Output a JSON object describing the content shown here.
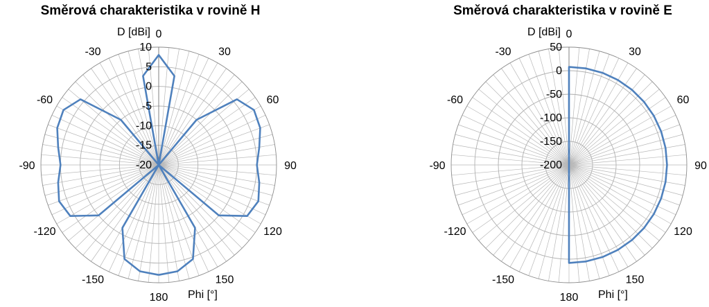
{
  "chart_data": [
    {
      "type": "polar-line",
      "title": "Směrová charakteristika v rovině H",
      "ylabel": "D [dBi]",
      "xlabel": "Phi [°]",
      "angle_labels": [
        "0",
        "30",
        "60",
        "90",
        "120",
        "150",
        "180",
        "-150",
        "-120",
        "-90",
        "-60",
        "-30"
      ],
      "r_ticks": [
        -20,
        -15,
        -10,
        -5,
        0,
        5,
        10
      ],
      "r_tick_labels": [
        "-20",
        "-15",
        "-10",
        "-5",
        "0",
        "5",
        "10"
      ],
      "rlim": [
        -20,
        10
      ],
      "line_color": "#4f81bd",
      "grid": true,
      "series": [
        {
          "phi": [
            -180,
            -170,
            -160,
            -150,
            -140,
            -130,
            -120,
            -110,
            -100,
            -90,
            -80,
            -70,
            -60,
            -50,
            -40,
            -30,
            -20,
            -10,
            0,
            10,
            20,
            30,
            40,
            50,
            60,
            70,
            80,
            90,
            100,
            110,
            120,
            130,
            140,
            150,
            160,
            170,
            180
          ],
          "values": [
            8,
            7.5,
            5.5,
            -1.5,
            -20,
            0,
            6,
            7,
            6,
            5,
            6,
            7.5,
            8,
            6,
            -5,
            -20,
            -20,
            3,
            8,
            3,
            -20,
            -20,
            -5,
            6,
            8,
            7.5,
            6,
            5,
            6,
            7,
            6,
            0,
            -20,
            -1.5,
            5.5,
            7.5,
            8
          ]
        }
      ]
    },
    {
      "type": "polar-line",
      "title": "Směrová charakteristika v rovině  E",
      "ylabel": "D [dBi]",
      "xlabel": "Phi [°]",
      "angle_labels": [
        "0",
        "30",
        "60",
        "90",
        "120",
        "150",
        "180",
        "-150",
        "-120",
        "-90",
        "-60",
        "-30"
      ],
      "r_ticks": [
        -200,
        -150,
        -100,
        -50,
        0,
        50
      ],
      "r_tick_labels": [
        "-200",
        "-150",
        "-100",
        "-50",
        "0",
        "50"
      ],
      "rlim": [
        -200,
        50
      ],
      "line_color": "#4f81bd",
      "grid": true,
      "series": [
        {
          "phi": [
            0,
            0,
            10,
            20,
            30,
            40,
            50,
            60,
            70,
            80,
            90,
            100,
            110,
            120,
            130,
            140,
            150,
            160,
            170,
            180,
            180
          ],
          "values": [
            -200,
            8,
            8,
            8,
            8,
            8,
            8,
            8,
            8,
            8,
            8,
            8,
            8,
            8,
            8,
            8,
            8,
            8,
            8,
            8,
            -200
          ]
        }
      ]
    }
  ]
}
